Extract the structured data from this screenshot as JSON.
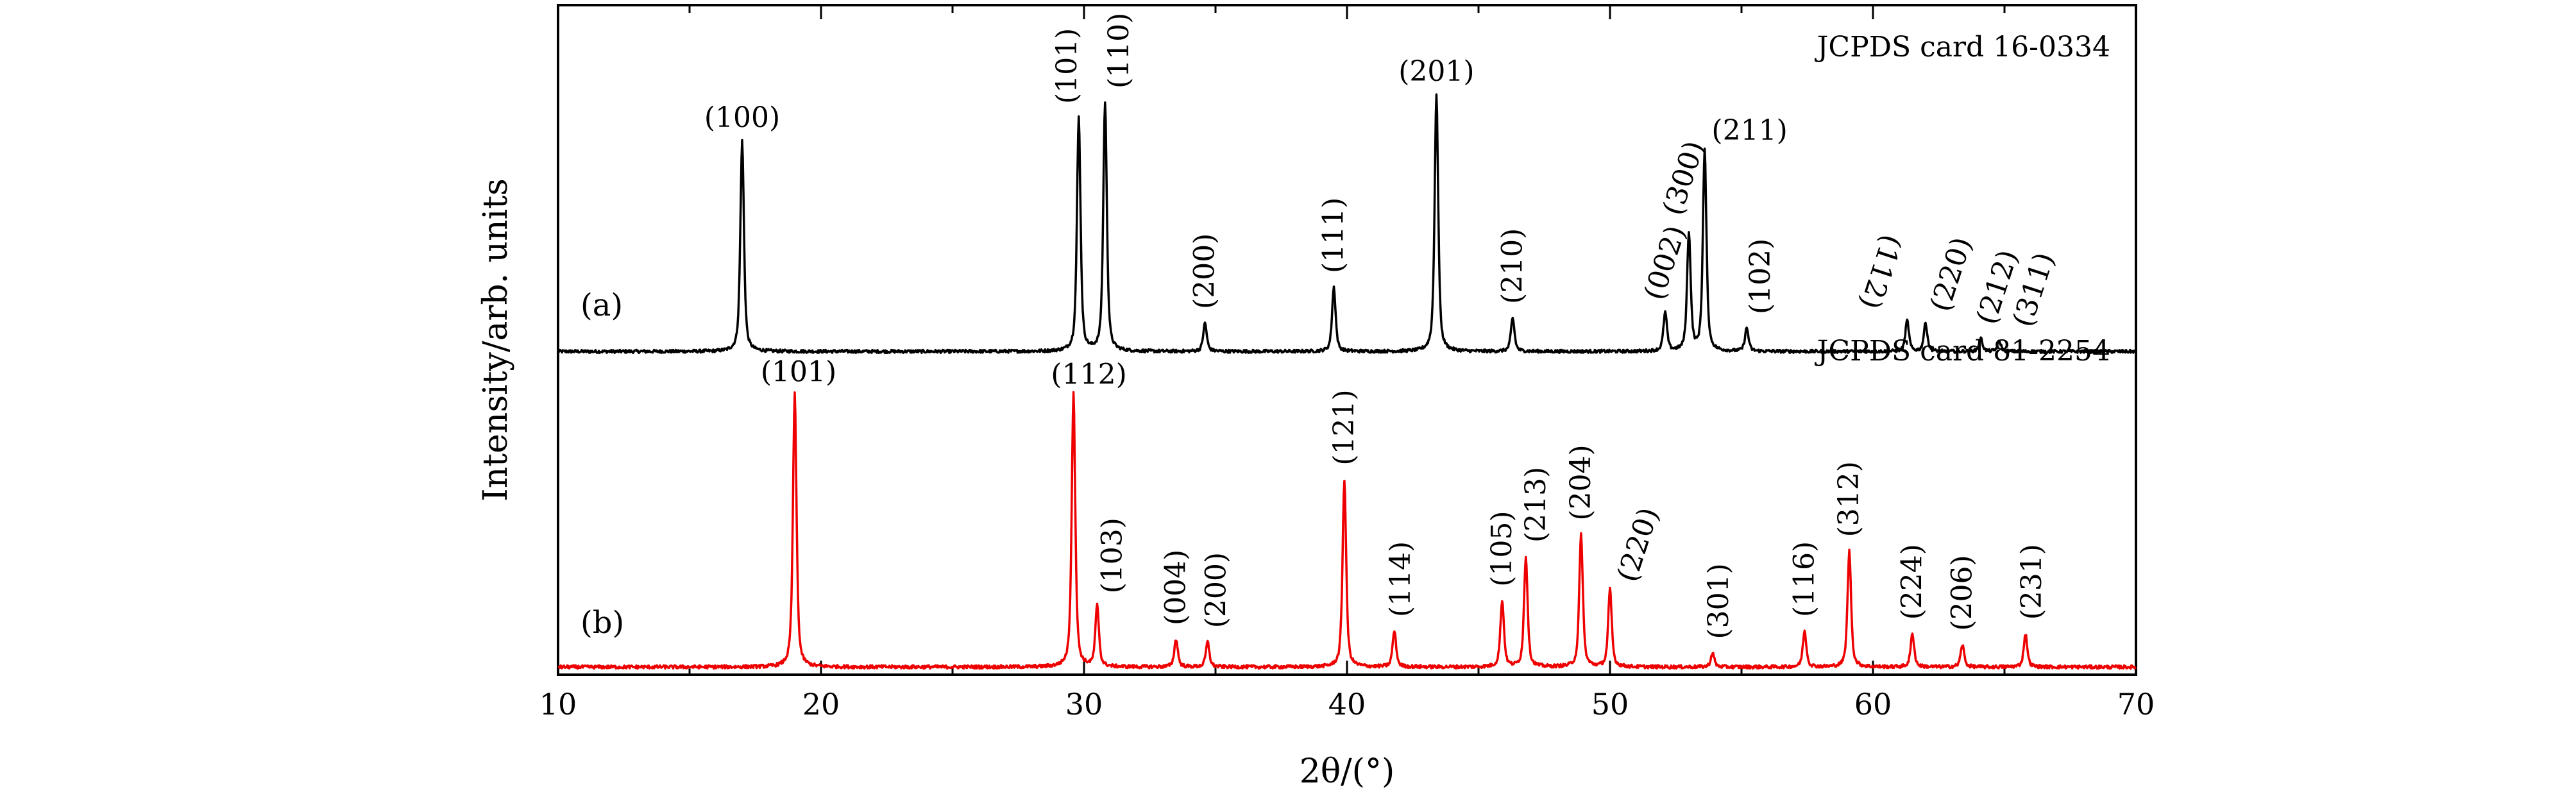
{
  "chart_data": {
    "type": "line",
    "xlabel": "2θ/(°)",
    "ylabel": "Intensity/arb. units",
    "xlim": [
      10,
      70
    ],
    "x_ticks": [
      10,
      20,
      30,
      40,
      50,
      60,
      70
    ],
    "x_tick_labels": [
      "10",
      "20",
      "30",
      "40",
      "50",
      "60",
      "70"
    ],
    "series": [
      {
        "panel": "(a)",
        "reference": "JCPDS card 16-0334",
        "color": "#000000",
        "peaks": [
          {
            "x": 17.0,
            "y": 0.82,
            "label": "(100)"
          },
          {
            "x": 29.8,
            "y": 0.91,
            "label": "(101)"
          },
          {
            "x": 30.8,
            "y": 0.97,
            "label": "(110)"
          },
          {
            "x": 34.6,
            "y": 0.11,
            "label": "(200)"
          },
          {
            "x": 39.5,
            "y": 0.25,
            "label": "(111)"
          },
          {
            "x": 43.4,
            "y": 1.0,
            "label": "(201)"
          },
          {
            "x": 46.3,
            "y": 0.13,
            "label": "(210)"
          },
          {
            "x": 52.1,
            "y": 0.15,
            "label": "(002)"
          },
          {
            "x": 53.0,
            "y": 0.46,
            "label": "(300)"
          },
          {
            "x": 53.6,
            "y": 0.78,
            "label": "(211)"
          },
          {
            "x": 55.2,
            "y": 0.09,
            "label": "(102)"
          },
          {
            "x": 61.3,
            "y": 0.12,
            "label": "(112)"
          },
          {
            "x": 62.0,
            "y": 0.11,
            "label": "(220)"
          },
          {
            "x": 64.1,
            "y": 0.05,
            "label": "(212)"
          },
          {
            "x": 64.8,
            "y": 0.04,
            "label": "(311)"
          }
        ]
      },
      {
        "panel": "(b)",
        "reference": "JCPDS card 81-2254",
        "color": "#ee0000",
        "peaks": [
          {
            "x": 19.0,
            "y": 0.99,
            "label": "(101)"
          },
          {
            "x": 29.6,
            "y": 0.99,
            "label": "(112)"
          },
          {
            "x": 30.5,
            "y": 0.22,
            "label": "(103)"
          },
          {
            "x": 33.5,
            "y": 0.1,
            "label": "(004)"
          },
          {
            "x": 34.7,
            "y": 0.09,
            "label": "(200)"
          },
          {
            "x": 39.9,
            "y": 0.68,
            "label": "(121)"
          },
          {
            "x": 41.8,
            "y": 0.13,
            "label": "(114)"
          },
          {
            "x": 45.9,
            "y": 0.24,
            "label": "(105)"
          },
          {
            "x": 46.8,
            "y": 0.4,
            "label": "(213)"
          },
          {
            "x": 48.9,
            "y": 0.48,
            "label": "(204)"
          },
          {
            "x": 50.0,
            "y": 0.28,
            "label": "(220)"
          },
          {
            "x": 53.9,
            "y": 0.05,
            "label": "(301)"
          },
          {
            "x": 57.4,
            "y": 0.13,
            "label": "(116)"
          },
          {
            "x": 59.1,
            "y": 0.42,
            "label": "(312)"
          },
          {
            "x": 61.5,
            "y": 0.12,
            "label": "(224)"
          },
          {
            "x": 63.4,
            "y": 0.08,
            "label": "(206)"
          },
          {
            "x": 65.8,
            "y": 0.12,
            "label": "(231)"
          }
        ]
      }
    ]
  }
}
